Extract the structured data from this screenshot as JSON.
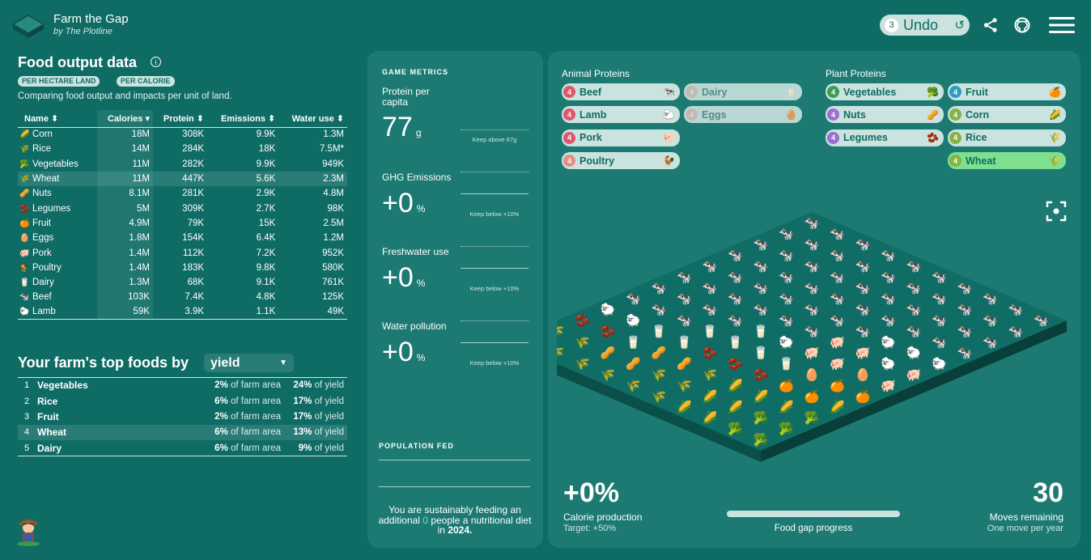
{
  "header": {
    "title": "Farm the Gap",
    "subtitle": "by The Plotline",
    "undo_count": "3",
    "undo_label": "Undo",
    "undo_icon": "↺"
  },
  "food_output": {
    "title": "Food output data",
    "chip_land": "PER HECTARE LAND",
    "chip_calorie": "PER CALORIE",
    "description": "Comparing food output and impacts per unit of land.",
    "columns": {
      "name": "Name ⬍",
      "calories": "Calories ▾",
      "protein": "Protein ⬍",
      "emissions": "Emissions ⬍",
      "water": "Water use ⬍"
    },
    "rows": [
      {
        "icon": "🌽",
        "name": "Corn",
        "calories": "18M",
        "protein": "308K",
        "emissions": "9.9K",
        "water": "1.3M"
      },
      {
        "icon": "🌾",
        "name": "Rice",
        "calories": "14M",
        "protein": "284K",
        "emissions": "18K",
        "water": "7.5M*"
      },
      {
        "icon": "🥦",
        "name": "Vegetables",
        "calories": "11M",
        "protein": "282K",
        "emissions": "9.9K",
        "water": "949K"
      },
      {
        "icon": "🌾",
        "name": "Wheat",
        "calories": "11M",
        "protein": "447K",
        "emissions": "5.6K",
        "water": "2.3M"
      },
      {
        "icon": "🥜",
        "name": "Nuts",
        "calories": "8.1M",
        "protein": "281K",
        "emissions": "2.9K",
        "water": "4.8M"
      },
      {
        "icon": "🫘",
        "name": "Legumes",
        "calories": "5M",
        "protein": "309K",
        "emissions": "2.7K",
        "water": "98K"
      },
      {
        "icon": "🍊",
        "name": "Fruit",
        "calories": "4.9M",
        "protein": "79K",
        "emissions": "15K",
        "water": "2.5M"
      },
      {
        "icon": "🥚",
        "name": "Eggs",
        "calories": "1.8M",
        "protein": "154K",
        "emissions": "6.4K",
        "water": "1.2M"
      },
      {
        "icon": "🐖",
        "name": "Pork",
        "calories": "1.4M",
        "protein": "112K",
        "emissions": "7.2K",
        "water": "952K"
      },
      {
        "icon": "🐓",
        "name": "Poultry",
        "calories": "1.4M",
        "protein": "183K",
        "emissions": "9.8K",
        "water": "580K"
      },
      {
        "icon": "🥛",
        "name": "Dairy",
        "calories": "1.3M",
        "protein": "68K",
        "emissions": "9.1K",
        "water": "761K"
      },
      {
        "icon": "🐄",
        "name": "Beef",
        "calories": "103K",
        "protein": "7.4K",
        "emissions": "4.8K",
        "water": "125K"
      },
      {
        "icon": "🐑",
        "name": "Lamb",
        "calories": "59K",
        "protein": "3.9K",
        "emissions": "1.1K",
        "water": "49K"
      }
    ]
  },
  "top_foods": {
    "title": "Your farm's top foods by",
    "select_value": "yield",
    "area_suffix": "of farm area",
    "yield_suffix": "of yield",
    "rows": [
      {
        "rank": "1",
        "name": "Vegetables",
        "area": "2%",
        "yield": "24%"
      },
      {
        "rank": "2",
        "name": "Rice",
        "area": "6%",
        "yield": "17%"
      },
      {
        "rank": "3",
        "name": "Fruit",
        "area": "2%",
        "yield": "17%"
      },
      {
        "rank": "4",
        "name": "Wheat",
        "area": "6%",
        "yield": "13%"
      },
      {
        "rank": "5",
        "name": "Dairy",
        "area": "6%",
        "yield": "9%"
      }
    ]
  },
  "metrics": {
    "heading": "GAME METRICS",
    "protein": {
      "label": "Protein per capita",
      "value": "77",
      "unit": "g",
      "note": "Keep above 67g"
    },
    "ghg": {
      "label": "GHG Emissions",
      "value": "+0",
      "unit": "%",
      "note": "Keep below +10%"
    },
    "freshwater": {
      "label": "Freshwater use",
      "value": "+0",
      "unit": "%",
      "note": "Keep below +10%"
    },
    "pollution": {
      "label": "Water pollution",
      "value": "+0",
      "unit": "%",
      "note": "Keep below +10%"
    },
    "population_heading": "POPULATION FED",
    "pop_text_1": "You are sustainably feeding an additional",
    "pop_count": "0",
    "pop_text_2": "people a nutritional diet in",
    "pop_year": "2024."
  },
  "animal_proteins": {
    "label": "Animal Proteins",
    "items": [
      {
        "name": "Beef",
        "count": "4",
        "icon": "🐄",
        "color": "#e0566b"
      },
      {
        "name": "Dairy",
        "count": "4",
        "icon": "🥛",
        "color": "#e98a86"
      },
      {
        "name": "Lamb",
        "count": "4",
        "icon": "🐑",
        "color": "#e0566b"
      },
      {
        "name": "Eggs",
        "count": "4",
        "icon": "🥚",
        "color": "#e98a86"
      },
      {
        "name": "Pork",
        "count": "4",
        "icon": "🐖",
        "color": "#e0566b"
      },
      {
        "name": "Poultry",
        "count": "4",
        "icon": "🐓",
        "color": "#e98a86"
      }
    ]
  },
  "plant_proteins": {
    "label": "Plant Proteins",
    "items": [
      {
        "name": "Vegetables",
        "count": "4",
        "icon": "🥦",
        "color": "#3d9a57"
      },
      {
        "name": "Fruit",
        "count": "4",
        "icon": "🍊",
        "color": "#2a9ec2"
      },
      {
        "name": "Nuts",
        "count": "4",
        "icon": "🥜",
        "color": "#9b6fce"
      },
      {
        "name": "Corn",
        "count": "4",
        "icon": "🌽",
        "color": "#86b345"
      },
      {
        "name": "Legumes",
        "count": "4",
        "icon": "🫘",
        "color": "#9b6fce"
      },
      {
        "name": "Rice",
        "count": "4",
        "icon": "🌾",
        "color": "#86b345"
      },
      {
        "name": "Wheat",
        "count": "4",
        "icon": "🌾",
        "color": "#86b345"
      }
    ]
  },
  "bottom": {
    "calorie_value": "+0%",
    "calorie_label": "Calorie production",
    "calorie_target": "Target: +50%",
    "progress_label": "Food gap progress",
    "progress_fraction": 0.0,
    "moves_value": "30",
    "moves_label": "Moves remaining",
    "moves_sub": "One move per year"
  },
  "farm_grid": [
    "BBBBBBBBBB",
    "BBBBBBBBBB",
    "BBBBBBBBBB",
    "BBBBBBBBBB",
    "BBBBBBBLLL",
    "BBBBBBPPLP",
    "BBBBDLPPEP",
    "BBBDDDDEFF",
    "LLDDNNNFFC",
    "NNDKKWCCCV",
    "WWKKWWCCVV",
    "WWWWWWCCVV"
  ],
  "colors": {
    "background": "#0f6c65",
    "panel": "#1c7a73",
    "accent_green": "#7ee08f",
    "chip": "#cbe3df"
  }
}
